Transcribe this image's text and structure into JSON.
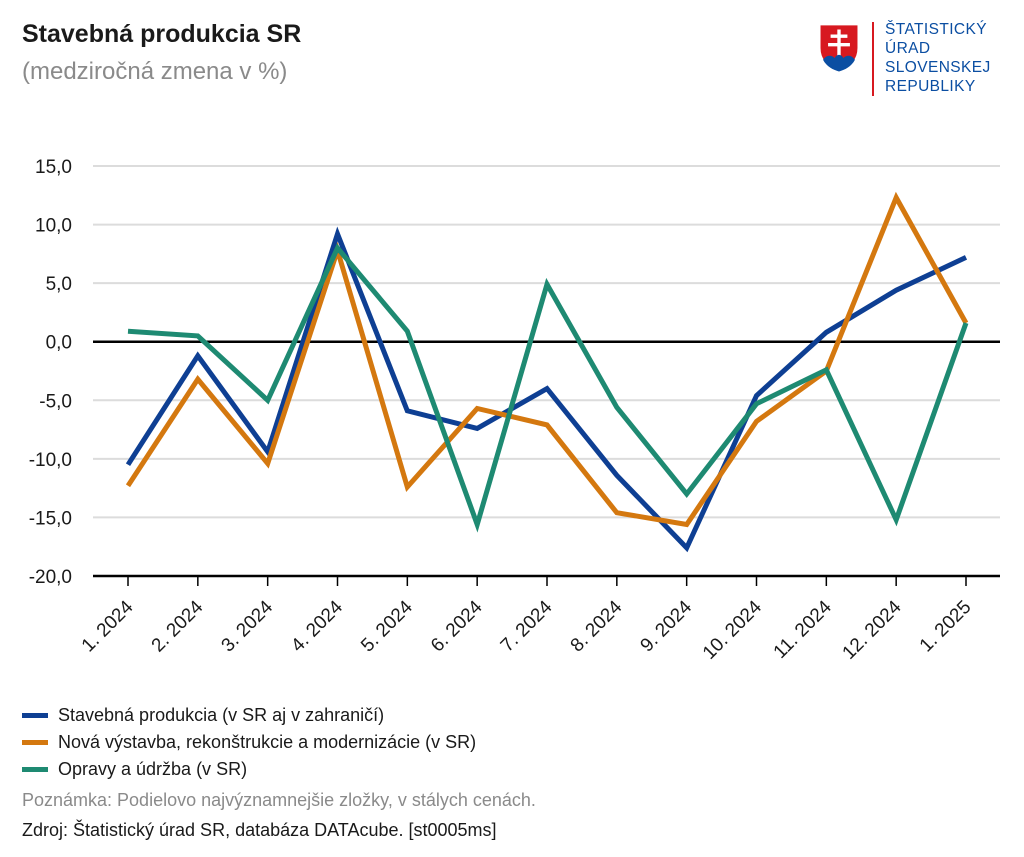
{
  "header": {
    "title": "Stavebná produkcia SR",
    "subtitle": "(medziročná zmena v %)"
  },
  "logo": {
    "lines": [
      "ŠTATISTICKÝ",
      "ÚRAD",
      "SLOVENSKEJ",
      "REPUBLIKY"
    ],
    "color": "#0b4ea2",
    "accent": "#d71920"
  },
  "chart_data": {
    "type": "line",
    "title": "Stavebná produkcia SR",
    "subtitle": "(medziročná zmena v %)",
    "xlabel": "",
    "ylabel": "",
    "ylim": [
      -20,
      15
    ],
    "yticks": [
      15,
      10,
      5,
      0,
      -5,
      -10,
      -15,
      -20
    ],
    "ytick_labels": [
      "15,0",
      "10,0",
      "5,0",
      "0,0",
      "-5,0",
      "-10,0",
      "-15,0",
      "-20,0"
    ],
    "categories": [
      "1. 2024",
      "2. 2024",
      "3. 2024",
      "4. 2024",
      "5. 2024",
      "6. 2024",
      "7. 2024",
      "8. 2024",
      "9. 2024",
      "10. 2024",
      "11. 2024",
      "12. 2024",
      "1. 2025"
    ],
    "grid": true,
    "series": [
      {
        "name": "Stavebná produkcia (v SR aj v zahraničí)",
        "color": "#0e3f93",
        "values": [
          -10.5,
          -1.2,
          -9.4,
          9.2,
          -5.9,
          -7.4,
          -4.0,
          -11.4,
          -17.6,
          -4.6,
          0.8,
          4.4,
          7.2
        ]
      },
      {
        "name": "Nová výstavba, rekonštrukcie a modernizácie (v SR)",
        "color": "#d4780f",
        "values": [
          -12.3,
          -3.2,
          -10.4,
          7.8,
          -12.4,
          -5.7,
          -7.1,
          -14.6,
          -15.6,
          -6.8,
          -2.5,
          12.3,
          1.6
        ]
      },
      {
        "name": "Opravy a údržba (v SR)",
        "color": "#1e8a72",
        "values": [
          0.9,
          0.5,
          -5.0,
          8.0,
          0.9,
          -15.6,
          4.9,
          -5.6,
          -13.0,
          -5.3,
          -2.4,
          -15.2,
          1.6
        ]
      }
    ],
    "legend_position": "bottom-left"
  },
  "footer": {
    "note": "Poznámka: Podielovo najvýznamnejšie zložky, v stálych cenách.",
    "source": "Zdroj: Štatistický úrad SR, databáza DATAcube. [st0005ms]"
  }
}
